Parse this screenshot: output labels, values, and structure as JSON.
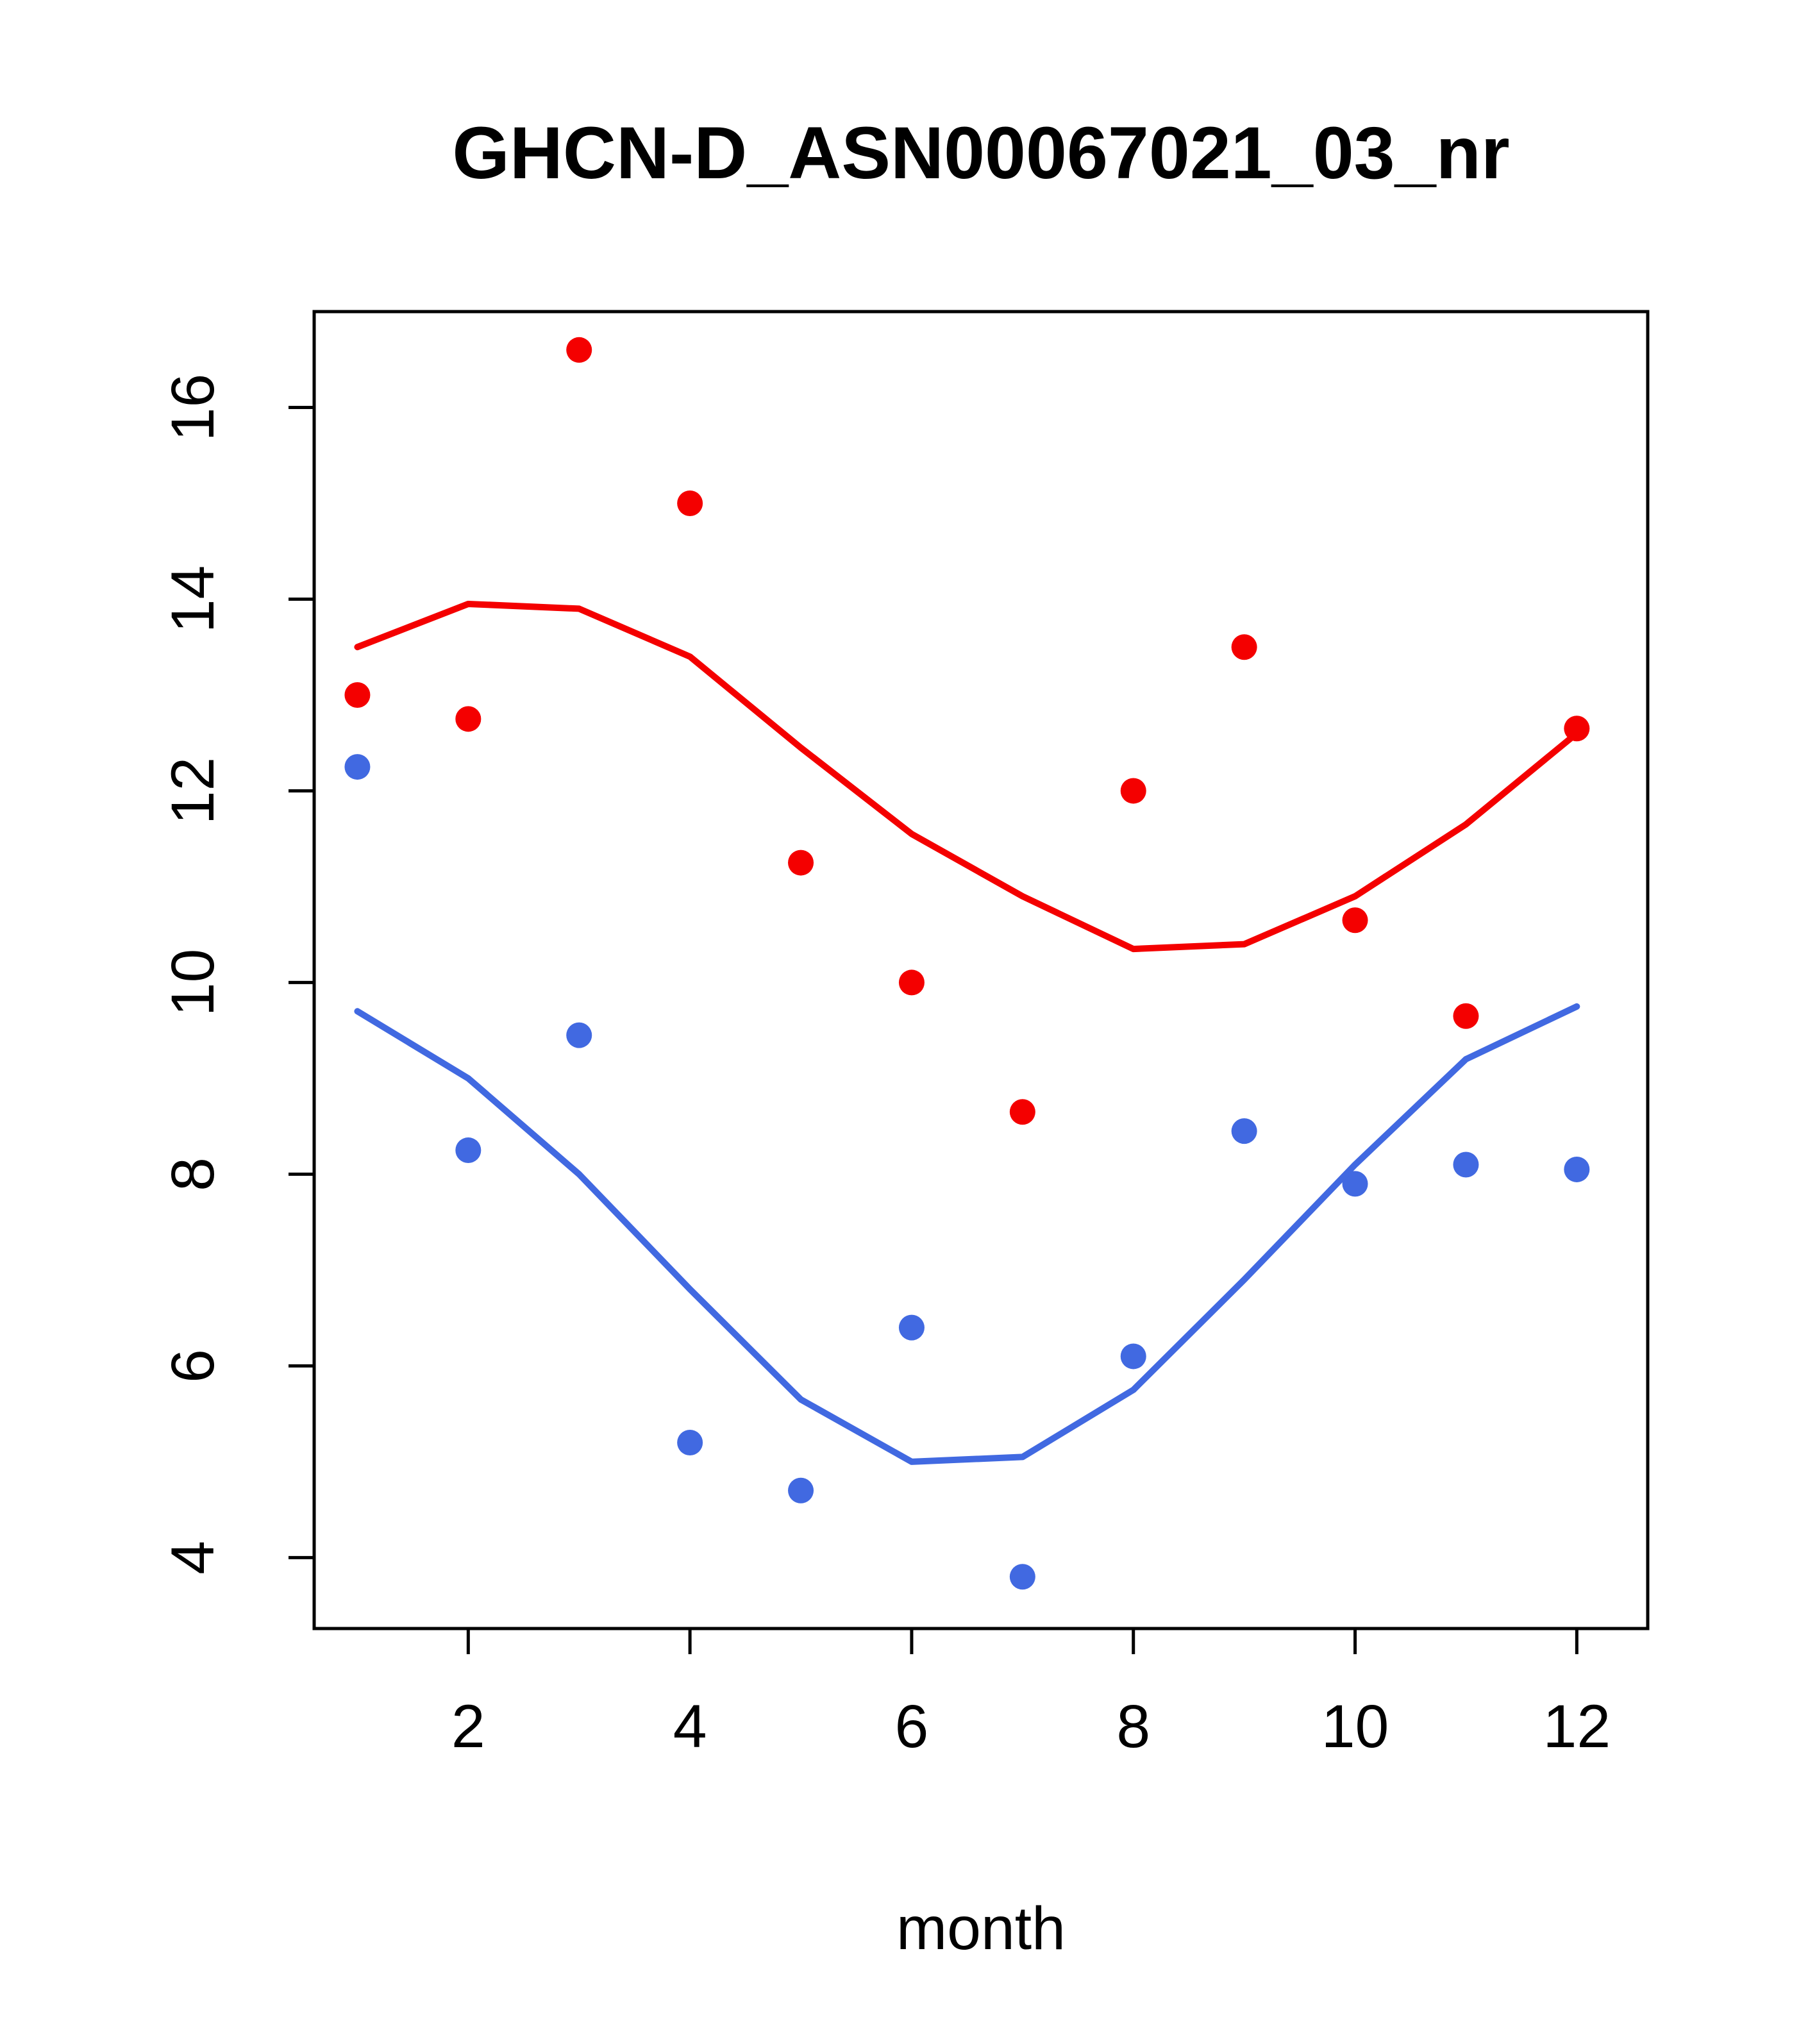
{
  "chart_data": {
    "type": "scatter",
    "title": "GHCN-D_ASN00067021_03_nr",
    "xlabel": "month",
    "ylabel": "",
    "xlim": [
      0.61,
      12.64
    ],
    "ylim": [
      3.26,
      17.0
    ],
    "x_ticks": [
      2,
      4,
      6,
      8,
      10,
      12
    ],
    "y_ticks": [
      4,
      6,
      8,
      10,
      12,
      14,
      16
    ],
    "grid": false,
    "legend": false,
    "x": [
      1,
      2,
      3,
      4,
      5,
      6,
      7,
      8,
      9,
      10,
      11,
      12
    ],
    "series": [
      {
        "name": "red-points",
        "type": "points",
        "color": "#f40000",
        "values": [
          13.0,
          12.75,
          16.6,
          15.0,
          11.25,
          10.0,
          8.65,
          12.0,
          13.5,
          10.65,
          9.65,
          12.65
        ]
      },
      {
        "name": "red-smooth",
        "type": "line",
        "color": "#f40000",
        "values": [
          13.5,
          13.95,
          13.9,
          13.4,
          12.45,
          11.55,
          10.9,
          10.35,
          10.4,
          10.9,
          11.65,
          12.6
        ]
      },
      {
        "name": "blue-points",
        "type": "points",
        "color": "#4169e1",
        "values": [
          12.25,
          8.25,
          9.45,
          5.2,
          4.7,
          6.4,
          3.8,
          6.1,
          8.45,
          7.9,
          8.1,
          8.05
        ]
      },
      {
        "name": "blue-smooth",
        "type": "line",
        "color": "#4169e1",
        "values": [
          9.7,
          9.0,
          8.0,
          6.8,
          5.65,
          5.0,
          5.05,
          5.75,
          6.9,
          8.1,
          9.2,
          9.75
        ]
      }
    ],
    "axis_color": "#000000",
    "background": "#ffffff"
  }
}
